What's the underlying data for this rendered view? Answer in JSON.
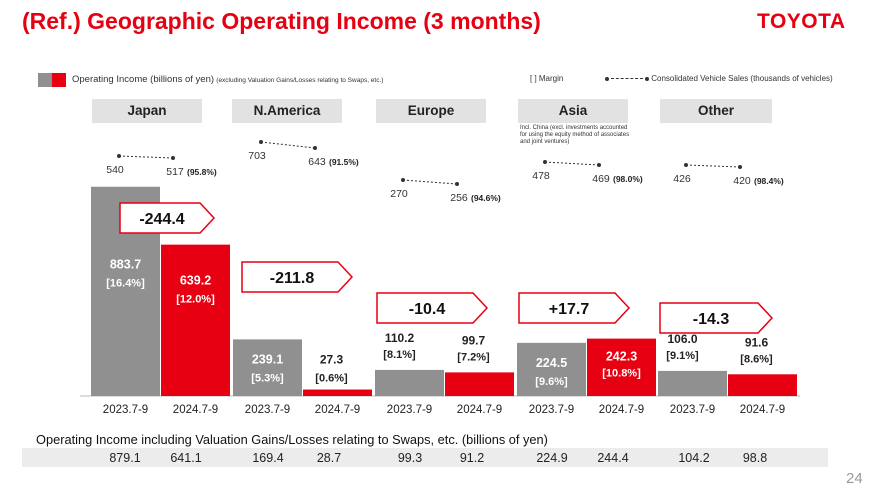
{
  "title": "(Ref.) Geographic Operating Income (3 months)",
  "logo": "TOYOTA",
  "legend": {
    "operating_income": "Operating Income (billions of yen)",
    "operating_income_note": "(excluding Valuation Gains/Losses relating to Swaps, etc.)",
    "margin": "[    ] Margin",
    "sales": "Consolidated Vehicle Sales (thousands of vehicles)"
  },
  "china_note": "Incl. China (excl. investments accounted for using the equity method of associates and joint ventures)",
  "colors": {
    "prior": "#909090",
    "current": "#e60012",
    "accent": "#e60012"
  },
  "chart_data": {
    "type": "bar",
    "categories": [
      "Japan",
      "N.America",
      "Europe",
      "Asia",
      "Other"
    ],
    "period_labels": [
      "2023.7-9",
      "2024.7-9"
    ],
    "series": [
      {
        "name": "2023.7-9",
        "values": [
          883.7,
          239.1,
          110.2,
          224.5,
          106.0
        ],
        "margins": [
          "[16.4%]",
          "[5.3%]",
          "[8.1%]",
          "[9.6%]",
          "[9.1%]"
        ],
        "value_labels": [
          "883.7",
          "239.1",
          "110.2",
          "224.5",
          "106.0"
        ]
      },
      {
        "name": "2024.7-9",
        "values": [
          639.2,
          27.3,
          99.7,
          242.3,
          91.6
        ],
        "margins": [
          "[12.0%]",
          "[0.6%]",
          "[7.2%]",
          "[10.8%]",
          "[8.6%]"
        ],
        "value_labels": [
          "639.2",
          "27.3",
          "99.7",
          "242.3",
          "91.6"
        ]
      }
    ],
    "changes": [
      "-244.4",
      "-211.8",
      "-10.4",
      "+17.7",
      "-14.3"
    ],
    "vehicle_sales": {
      "prior": [
        540,
        703,
        270,
        478,
        426
      ],
      "current": [
        517,
        643,
        256,
        469,
        420
      ],
      "current_labels": [
        "517",
        "643",
        "256",
        "469",
        "420"
      ],
      "prior_labels": [
        "540",
        "703",
        "270",
        "478",
        "426"
      ],
      "ratio_labels": [
        "(95.8%)",
        "(91.5%)",
        "(94.6%)",
        "(98.0%)",
        "(98.4%)"
      ]
    }
  },
  "bottom_table": {
    "title": "Operating Income including Valuation Gains/Losses relating to Swaps, etc. (billions of yen)",
    "values": [
      "879.1",
      "641.1",
      "169.4",
      "28.7",
      "99.3",
      "91.2",
      "224.9",
      "244.4",
      "104.2",
      "98.8"
    ]
  },
  "page_number": "24"
}
